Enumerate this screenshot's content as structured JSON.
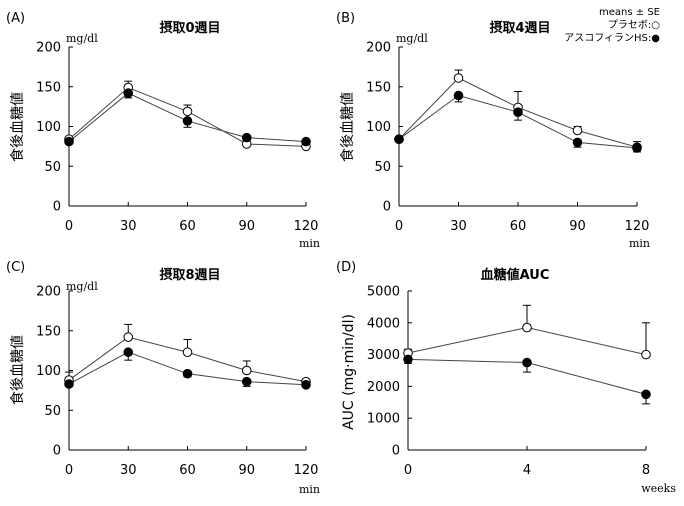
{
  "legend": {
    "stat": "means ± SE",
    "placebo": "プラセボ:○",
    "ascofuranone": "アスコフィランHS:●"
  },
  "chart_data": [
    {
      "id": "A",
      "type": "line",
      "panel_label": "(A)",
      "title": "摂取0週目",
      "ylabel": "食後血糖値",
      "unit_y": "mg/dl",
      "xlabel": "min",
      "x": [
        0,
        30,
        60,
        90,
        120
      ],
      "xticks": [
        "0",
        "30",
        "60",
        "90",
        "120"
      ],
      "ylim": [
        0,
        200
      ],
      "yticks": [
        "0",
        "50",
        "100",
        "150",
        "200"
      ],
      "series": [
        {
          "marker": "open",
          "values": [
            84,
            149,
            119,
            78,
            75
          ],
          "se": [
            3,
            8,
            8,
            10,
            6
          ],
          "err_dir": "up"
        },
        {
          "marker": "filled",
          "values": [
            81,
            142,
            107,
            86,
            81
          ],
          "se": [
            3,
            6,
            8,
            4,
            4
          ],
          "err_dir": "down"
        }
      ]
    },
    {
      "id": "B",
      "type": "line",
      "panel_label": "(B)",
      "title": "摂取4週目",
      "ylabel": "食後血糖値",
      "unit_y": "mg/dl",
      "xlabel": "min",
      "x": [
        0,
        30,
        60,
        90,
        120
      ],
      "xticks": [
        "0",
        "30",
        "60",
        "90",
        "120"
      ],
      "ylim": [
        0,
        200
      ],
      "yticks": [
        "0",
        "50",
        "100",
        "150",
        "200"
      ],
      "series": [
        {
          "marker": "open",
          "values": [
            84,
            161,
            124,
            95,
            74
          ],
          "se": [
            2,
            10,
            20,
            5,
            7
          ],
          "err_dir": "up"
        },
        {
          "marker": "filled",
          "values": [
            84,
            139,
            118,
            80,
            73
          ],
          "se": [
            3,
            8,
            10,
            6,
            5
          ],
          "err_dir": "down"
        }
      ]
    },
    {
      "id": "C",
      "type": "line",
      "panel_label": "(C)",
      "title": "摂取8週目",
      "ylabel": "食後血糖値",
      "unit_y": "mg/dl",
      "xlabel": "min",
      "x": [
        0,
        30,
        60,
        90,
        120
      ],
      "xticks": [
        "0",
        "30",
        "60",
        "90",
        "120"
      ],
      "ylim": [
        0,
        200
      ],
      "yticks": [
        "0",
        "50",
        "100",
        "150",
        "200"
      ],
      "series": [
        {
          "marker": "open",
          "values": [
            88,
            142,
            123,
            100,
            86
          ],
          "se": [
            10,
            16,
            16,
            12,
            3
          ],
          "err_dir": "up"
        },
        {
          "marker": "filled",
          "values": [
            83,
            123,
            96,
            86,
            82
          ],
          "se": [
            3,
            10,
            4,
            6,
            2
          ],
          "err_dir": "down"
        }
      ]
    },
    {
      "id": "D",
      "type": "line",
      "panel_label": "(D)",
      "title": "血糖値AUC",
      "ylabel": "AUC (mg·min/dl)",
      "unit_y": "",
      "xlabel": "weeks",
      "x": [
        0,
        4,
        8
      ],
      "xticks": [
        "0",
        "4",
        "8"
      ],
      "ylim": [
        0,
        5000
      ],
      "yticks": [
        "0",
        "1000",
        "2000",
        "3000",
        "4000",
        "5000"
      ],
      "series": [
        {
          "marker": "open",
          "values": [
            3050,
            3850,
            3000
          ],
          "se": [
            120,
            700,
            1000
          ],
          "err_dir": "up"
        },
        {
          "marker": "filled",
          "values": [
            2850,
            2750,
            1750
          ],
          "se": [
            130,
            300,
            300
          ],
          "err_dir": "down"
        }
      ]
    }
  ]
}
